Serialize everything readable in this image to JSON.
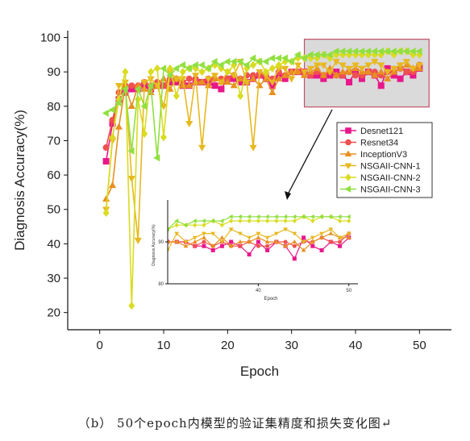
{
  "caption": "（b） 50个epoch内模型的验证集精度和损失变化图↵",
  "chart_data": {
    "type": "line",
    "xlabel": "Epoch",
    "ylabel": "Diagnosis Accuracy(%)",
    "xlim": [
      -5,
      55
    ],
    "ylim": [
      15,
      102
    ],
    "xticks": [
      0,
      10,
      20,
      30,
      40,
      50
    ],
    "yticks": [
      20,
      30,
      40,
      50,
      60,
      70,
      80,
      90,
      100
    ],
    "legend_position": "right",
    "x": [
      1,
      2,
      3,
      4,
      5,
      6,
      7,
      8,
      9,
      10,
      11,
      12,
      13,
      14,
      15,
      16,
      17,
      18,
      19,
      20,
      21,
      22,
      23,
      24,
      25,
      26,
      27,
      28,
      29,
      30,
      31,
      32,
      33,
      34,
      35,
      36,
      37,
      38,
      39,
      40,
      41,
      42,
      43,
      44,
      45,
      46,
      47,
      48,
      49,
      50
    ],
    "series": [
      {
        "name": "Desnet121",
        "color": "#e8178a",
        "marker": "square",
        "values": [
          64,
          75,
          82,
          84,
          85,
          85,
          86,
          85,
          86,
          86,
          87,
          87,
          86,
          86,
          87,
          87,
          87,
          86,
          85,
          88,
          88,
          87,
          87,
          88,
          89,
          88,
          86,
          89,
          88,
          90,
          90,
          90,
          89,
          89,
          88,
          89,
          90,
          89,
          87,
          90,
          88,
          90,
          89,
          86,
          91,
          89,
          88,
          90,
          89,
          91
        ]
      },
      {
        "name": "Resnet34",
        "color": "#f05050",
        "marker": "circle",
        "values": [
          68,
          76,
          84,
          86,
          86,
          86,
          87,
          86,
          87,
          86,
          88,
          88,
          87,
          88,
          88,
          87,
          88,
          88,
          88,
          88,
          89,
          88,
          89,
          89,
          89,
          89,
          88,
          90,
          89,
          90,
          90,
          90,
          89,
          90,
          89,
          90,
          89,
          89,
          90,
          89,
          89,
          90,
          90,
          89,
          90,
          90,
          91,
          90,
          90,
          92
        ]
      },
      {
        "name": "InceptionV3",
        "color": "#e89020",
        "marker": "triangle-up",
        "values": [
          53,
          57,
          74,
          86,
          80,
          86,
          85,
          84,
          86,
          88,
          85,
          88,
          86,
          86,
          87,
          87,
          86,
          88,
          87,
          87,
          86,
          88,
          87,
          88,
          86,
          88,
          84,
          88,
          89,
          90,
          90,
          89,
          90,
          91,
          89,
          91,
          89,
          90,
          90,
          91,
          90,
          90,
          89,
          90,
          88,
          90,
          91,
          92,
          91,
          91
        ]
      },
      {
        "name": "NSGAII-CNN-1",
        "color": "#e8b820",
        "marker": "triangle-down",
        "values": [
          50,
          70,
          86,
          87,
          59,
          41,
          87,
          88,
          86,
          80,
          90,
          88,
          88,
          75,
          89,
          68,
          88,
          89,
          87,
          90,
          89,
          93,
          87,
          68,
          90,
          89,
          87,
          91,
          91,
          88,
          92,
          90,
          91,
          92,
          92,
          90,
          93,
          92,
          91,
          92,
          91,
          92,
          93,
          92,
          90,
          91,
          92,
          93,
          91,
          92
        ]
      },
      {
        "name": "NSGAII-CNN-2",
        "color": "#d9dc20",
        "marker": "diamond",
        "values": [
          49,
          71,
          82,
          90,
          22,
          82,
          72,
          90,
          91,
          71,
          91,
          83,
          90,
          91,
          91,
          90,
          91,
          92,
          91,
          90,
          92,
          83,
          91,
          92,
          93,
          90,
          91,
          92,
          93,
          93,
          94,
          94,
          94,
          94,
          95,
          94,
          95,
          95,
          95,
          95,
          95,
          95,
          95,
          95,
          96,
          95,
          96,
          96,
          95,
          95
        ]
      },
      {
        "name": "NSGAII-CNN-3",
        "color": "#90e040",
        "marker": "triangle-left",
        "values": [
          78,
          79,
          81,
          85,
          67,
          85,
          80,
          86,
          65,
          91,
          89,
          91,
          92,
          91,
          92,
          92,
          91,
          93,
          92,
          93,
          93,
          93,
          92,
          94,
          93,
          93,
          94,
          94,
          94,
          93,
          95,
          94,
          95,
          95,
          95,
          95,
          96,
          96,
          96,
          96,
          96,
          96,
          96,
          96,
          96,
          96,
          96,
          96,
          96,
          96
        ]
      }
    ],
    "inset": {
      "xlabel": "Epoch",
      "ylabel": "Diagnosis Accuracy(%)",
      "xlim": [
        30,
        51
      ],
      "ylim": [
        80,
        100
      ],
      "xticks": [
        40,
        50
      ],
      "yticks": [
        80,
        90
      ]
    }
  }
}
